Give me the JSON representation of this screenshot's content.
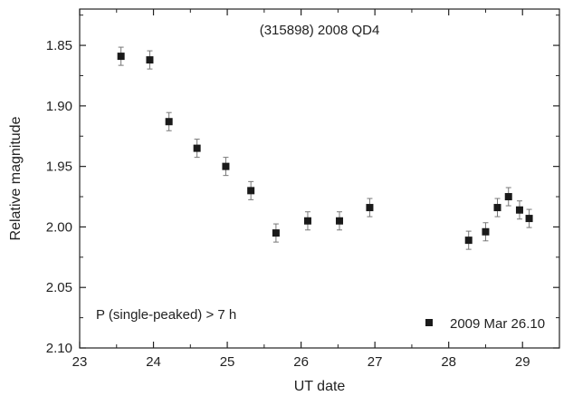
{
  "chart_data": {
    "type": "scatter",
    "title": "(315898) 2008 QD4",
    "xlabel": "UT date",
    "ylabel": "Relative magnitude",
    "xlim": [
      23,
      29.5
    ],
    "ylim": [
      1.82,
      2.1
    ],
    "y_inverted": true,
    "x_ticks": [
      23,
      24,
      25,
      26,
      27,
      28,
      29
    ],
    "y_ticks": [
      1.85,
      1.9,
      1.95,
      2.0,
      2.05,
      2.1
    ],
    "y_tick_labels": [
      "1.85",
      "1.90",
      "1.95",
      "2.00",
      "2.05",
      "2.10"
    ],
    "annotation": "P (single-peaked) > 7 h",
    "legend_position": "bottom-right",
    "marker_color": "#1a1a1a",
    "errorbar_color": "#777777",
    "series": [
      {
        "name": "2009 Mar 26.10",
        "marker": "square",
        "error": 0.0075,
        "points": [
          {
            "x": 23.56,
            "y": 1.859
          },
          {
            "x": 23.95,
            "y": 1.862
          },
          {
            "x": 24.21,
            "y": 1.913
          },
          {
            "x": 24.59,
            "y": 1.935
          },
          {
            "x": 24.98,
            "y": 1.95
          },
          {
            "x": 25.32,
            "y": 1.97
          },
          {
            "x": 25.66,
            "y": 2.005
          },
          {
            "x": 26.09,
            "y": 1.995
          },
          {
            "x": 26.52,
            "y": 1.995
          },
          {
            "x": 26.93,
            "y": 1.984
          },
          {
            "x": 28.27,
            "y": 2.011
          },
          {
            "x": 28.5,
            "y": 2.004
          },
          {
            "x": 28.66,
            "y": 1.984
          },
          {
            "x": 28.81,
            "y": 1.975
          },
          {
            "x": 28.96,
            "y": 1.986
          },
          {
            "x": 29.09,
            "y": 1.993
          }
        ]
      }
    ]
  }
}
